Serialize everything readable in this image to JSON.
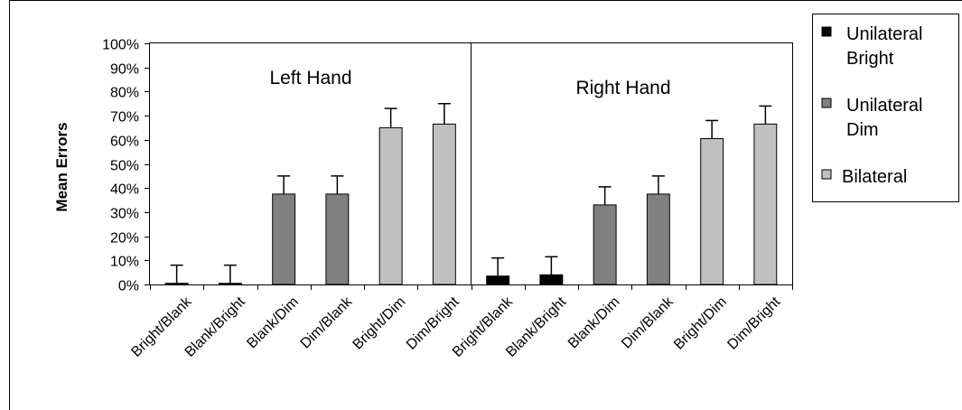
{
  "chart_data": {
    "type": "bar",
    "ylabel": "Mean Errors",
    "ylim": [
      0,
      100
    ],
    "yticks": [
      "0%",
      "10%",
      "20%",
      "30%",
      "40%",
      "50%",
      "60%",
      "70%",
      "80%",
      "90%",
      "100%"
    ],
    "y_unit": "%",
    "grid": false,
    "legend_position": "right",
    "panels": [
      {
        "title": "Left Hand",
        "categories": [
          "Bright/Blank",
          "Blank/Bright",
          "Blank/Dim",
          "Dim/Blank",
          "Bright/Dim",
          "Dim/Bright"
        ],
        "values": [
          0.5,
          0.5,
          37.5,
          37.5,
          65,
          66.5
        ],
        "error_upper": [
          7.5,
          7.5,
          7.5,
          7.5,
          8,
          8.5
        ],
        "groups": [
          "Unilateral Bright",
          "Unilateral Bright",
          "Unilateral Dim",
          "Unilateral Dim",
          "Bilateral",
          "Bilateral"
        ]
      },
      {
        "title": "Right Hand",
        "categories": [
          "Bright/Blank",
          "Blank/Bright",
          "Blank/Dim",
          "Dim/Blank",
          "Bright/Dim",
          "Dim/Bright"
        ],
        "values": [
          3.5,
          4,
          33,
          37.5,
          60.5,
          66.5
        ],
        "error_upper": [
          7.5,
          7.5,
          7.5,
          7.5,
          7.5,
          7.5
        ],
        "groups": [
          "Unilateral Bright",
          "Unilateral Bright",
          "Unilateral Dim",
          "Unilateral Dim",
          "Bilateral",
          "Bilateral"
        ]
      }
    ],
    "legend": [
      {
        "name": "Unilateral Bright",
        "lines": [
          "Unilateral",
          "Bright"
        ],
        "color": "#000000"
      },
      {
        "name": "Unilateral Dim",
        "lines": [
          "Unilateral",
          "Dim"
        ],
        "color": "#808080"
      },
      {
        "name": "Bilateral",
        "lines": [
          "Bilateral"
        ],
        "color": "#c0c0c0"
      }
    ]
  }
}
